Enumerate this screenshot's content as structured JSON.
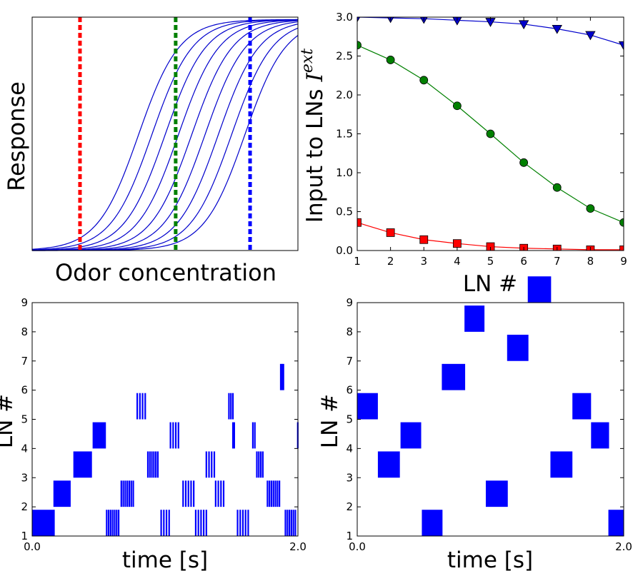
{
  "colors": {
    "blue": "#0000ff",
    "navy": "#0000cc",
    "green": "#008000",
    "red": "#ff0000"
  },
  "chart_data": [
    {
      "id": "dose-response",
      "type": "line",
      "title": "",
      "xlabel": "Odor concentration",
      "ylabel": "Response",
      "curves": {
        "count": 9,
        "shape": "sigmoid",
        "color": "#0000cc"
      },
      "curve_midpoints": [
        0.4,
        0.45,
        0.5,
        0.55,
        0.6,
        0.65,
        0.7,
        0.75,
        0.8
      ],
      "markers": [
        {
          "x": 0.18,
          "color": "#ff0000",
          "style": "dashed"
        },
        {
          "x": 0.54,
          "color": "#008000",
          "style": "dashed"
        },
        {
          "x": 0.82,
          "color": "#0000ff",
          "style": "dashed"
        }
      ],
      "xlim": [
        0,
        1
      ],
      "ylim": [
        0,
        1
      ],
      "ticks_shown": false
    },
    {
      "id": "ln-input",
      "type": "line",
      "title": "",
      "xlabel": "LN #",
      "ylabel": "Input to LNs",
      "ylabel_symbol": "I",
      "ylabel_superscript": "ext",
      "x": [
        1,
        2,
        3,
        4,
        5,
        6,
        7,
        8,
        9
      ],
      "xticks": [
        "1",
        "2",
        "3",
        "4",
        "5",
        "6",
        "7",
        "8",
        "9"
      ],
      "yticks": [
        "0.0",
        "0.5",
        "1.0",
        "1.5",
        "2.0",
        "2.5",
        "3.0"
      ],
      "xlim": [
        1,
        9
      ],
      "ylim": [
        0,
        3
      ],
      "series": [
        {
          "color": "#0000cc",
          "marker": "triangle-down",
          "values": [
            3.0,
            2.99,
            2.98,
            2.96,
            2.94,
            2.91,
            2.85,
            2.77,
            2.64
          ]
        },
        {
          "color": "#008000",
          "marker": "circle",
          "values": [
            2.64,
            2.45,
            2.19,
            1.86,
            1.5,
            1.13,
            0.81,
            0.54,
            0.36
          ]
        },
        {
          "color": "#ff0000",
          "marker": "square",
          "values": [
            0.36,
            0.23,
            0.14,
            0.09,
            0.05,
            0.03,
            0.02,
            0.01,
            0.01
          ]
        }
      ]
    },
    {
      "id": "raster-left",
      "type": "scatter",
      "title": "",
      "xlabel": "time [s]",
      "ylabel": "LN #",
      "xticks": [
        "0.0",
        "2.0"
      ],
      "yticks": [
        "1",
        "2",
        "3",
        "4",
        "5",
        "6",
        "7",
        "8",
        "9"
      ],
      "xlim": [
        0,
        2
      ],
      "ylim": [
        1,
        9
      ],
      "color": "#0000ff",
      "blocks": [
        {
          "ln": 1,
          "t0": 0.0,
          "t1": 0.17
        },
        {
          "ln": 2,
          "t0": 0.16,
          "t1": 0.29
        },
        {
          "ln": 3,
          "t0": 0.31,
          "t1": 0.45
        },
        {
          "ln": 4,
          "t0": 0.455,
          "t1": 0.555
        }
      ],
      "spikes": [
        {
          "ln": 1,
          "times": [
            0.555,
            0.57,
            0.585,
            0.6,
            0.615,
            0.63,
            0.645
          ]
        },
        {
          "ln": 2,
          "times": [
            0.665,
            0.68,
            0.695,
            0.71,
            0.725,
            0.74,
            0.755
          ]
        },
        {
          "ln": 3,
          "times": [
            0.865,
            0.88,
            0.895,
            0.91,
            0.925,
            0.94
          ]
        },
        {
          "ln": 5,
          "times": [
            0.785,
            0.805,
            0.825,
            0.845
          ]
        },
        {
          "ln": 1,
          "times": [
            0.965,
            0.985,
            1.005,
            1.025
          ]
        },
        {
          "ln": 2,
          "times": [
            1.13,
            1.15,
            1.17,
            1.19,
            1.21
          ]
        },
        {
          "ln": 3,
          "times": [
            1.305,
            1.325,
            1.345,
            1.365
          ]
        },
        {
          "ln": 4,
          "times": [
            1.035,
            1.055,
            1.075,
            1.095
          ]
        },
        {
          "ln": 1,
          "times": [
            1.225,
            1.245,
            1.265,
            1.285,
            1.305
          ]
        },
        {
          "ln": 2,
          "times": [
            1.375,
            1.395,
            1.415,
            1.435
          ]
        },
        {
          "ln": 4,
          "times": [
            1.505,
            1.515
          ]
        },
        {
          "ln": 5,
          "times": [
            1.475,
            1.49,
            1.505
          ]
        },
        {
          "ln": 1,
          "times": [
            1.54,
            1.56,
            1.58,
            1.6,
            1.62
          ]
        },
        {
          "ln": 4,
          "times": [
            1.655,
            1.67
          ]
        },
        {
          "ln": 3,
          "times": [
            1.685,
            1.7,
            1.715,
            1.73
          ]
        },
        {
          "ln": 2,
          "times": [
            1.765,
            1.78,
            1.795,
            1.81,
            1.825,
            1.84,
            1.855
          ]
        },
        {
          "ln": 6,
          "times": [
            1.865,
            1.875,
            1.885
          ]
        },
        {
          "ln": 1,
          "times": [
            1.9,
            1.915,
            1.93,
            1.945,
            1.96,
            1.975
          ]
        },
        {
          "ln": 4,
          "times": [
            1.993
          ]
        }
      ]
    },
    {
      "id": "raster-right",
      "type": "scatter",
      "title": "",
      "xlabel": "time [s]",
      "ylabel": "LN #",
      "xticks": [
        "0.0",
        "2.0"
      ],
      "yticks": [
        "1",
        "2",
        "3",
        "4",
        "5",
        "6",
        "7",
        "8",
        "9"
      ],
      "xlim": [
        0,
        2
      ],
      "ylim": [
        1,
        9
      ],
      "color": "#0000ff",
      "blocks": [
        {
          "ln": 5,
          "t0": 0.0,
          "t1": 0.155
        },
        {
          "ln": 3,
          "t0": 0.155,
          "t1": 0.32
        },
        {
          "ln": 4,
          "t0": 0.325,
          "t1": 0.48
        },
        {
          "ln": 1,
          "t0": 0.485,
          "t1": 0.64
        },
        {
          "ln": 6,
          "t0": 0.635,
          "t1": 0.81
        },
        {
          "ln": 8,
          "t0": 0.805,
          "t1": 0.955
        },
        {
          "ln": 2,
          "t0": 0.965,
          "t1": 1.13
        },
        {
          "ln": 7,
          "t0": 1.125,
          "t1": 1.285
        },
        {
          "ln": 9,
          "t0": 1.28,
          "t1": 1.455
        },
        {
          "ln": 3,
          "t0": 1.45,
          "t1": 1.615
        },
        {
          "ln": 5,
          "t0": 1.615,
          "t1": 1.755
        },
        {
          "ln": 4,
          "t0": 1.755,
          "t1": 1.89
        },
        {
          "ln": 1,
          "t0": 1.885,
          "t1": 2.0
        }
      ]
    }
  ]
}
